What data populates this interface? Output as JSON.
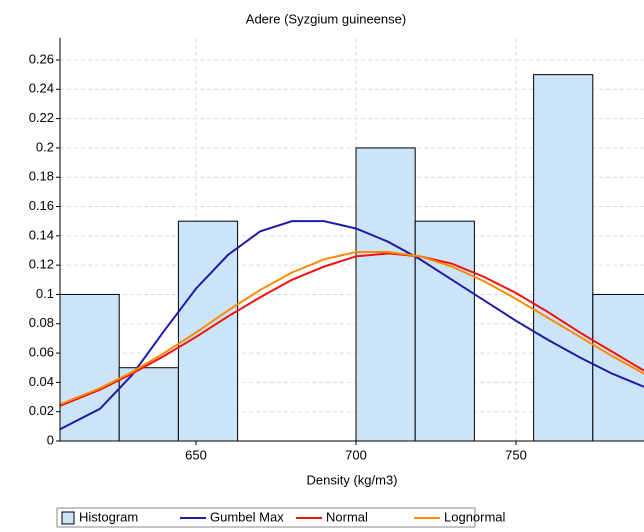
{
  "chart_data": {
    "type": "histogram",
    "title": "Adere (Syzgium guineense)",
    "x_label": "Density (kg/m3)",
    "xlim": [
      607.5,
      790
    ],
    "ylim": [
      0,
      0.275
    ],
    "xticks": [
      650,
      700,
      750
    ],
    "yticks": [
      0,
      0.02,
      0.04,
      0.06,
      0.08,
      0.1,
      0.12,
      0.14,
      0.16,
      0.18,
      0.2,
      0.22,
      0.24,
      0.26
    ],
    "grid": true,
    "legend": "bottom",
    "histogram": {
      "name": "Histogram",
      "color": "#cce4f8",
      "bins": [
        607.5,
        626,
        644.5,
        663,
        681.5,
        700,
        718.5,
        737,
        755.5,
        774,
        792.5
      ],
      "values": [
        0.1,
        0.05,
        0.15,
        0,
        0,
        0.2,
        0.15,
        0,
        0.25,
        0.1
      ]
    },
    "x": [
      607.5,
      620,
      630,
      640,
      650,
      660,
      670,
      680,
      690,
      700,
      710,
      720,
      730,
      740,
      750,
      760,
      770,
      780,
      790
    ],
    "series": [
      {
        "name": "Gumbel Max",
        "color": "#1c1ca8",
        "values": [
          0.008,
          0.022,
          0.045,
          0.075,
          0.104,
          0.127,
          0.143,
          0.15,
          0.15,
          0.145,
          0.136,
          0.124,
          0.11,
          0.096,
          0.082,
          0.069,
          0.057,
          0.046,
          0.037
        ]
      },
      {
        "name": "Normal",
        "color": "#f01010",
        "values": [
          0.024,
          0.035,
          0.046,
          0.058,
          0.071,
          0.085,
          0.098,
          0.11,
          0.119,
          0.126,
          0.128,
          0.126,
          0.121,
          0.112,
          0.101,
          0.088,
          0.074,
          0.061,
          0.048
        ]
      },
      {
        "name": "Lognormal",
        "color": "#ff8a00",
        "values": [
          0.025,
          0.036,
          0.047,
          0.06,
          0.074,
          0.089,
          0.103,
          0.115,
          0.124,
          0.129,
          0.129,
          0.126,
          0.119,
          0.109,
          0.097,
          0.084,
          0.071,
          0.058,
          0.046
        ]
      }
    ]
  }
}
